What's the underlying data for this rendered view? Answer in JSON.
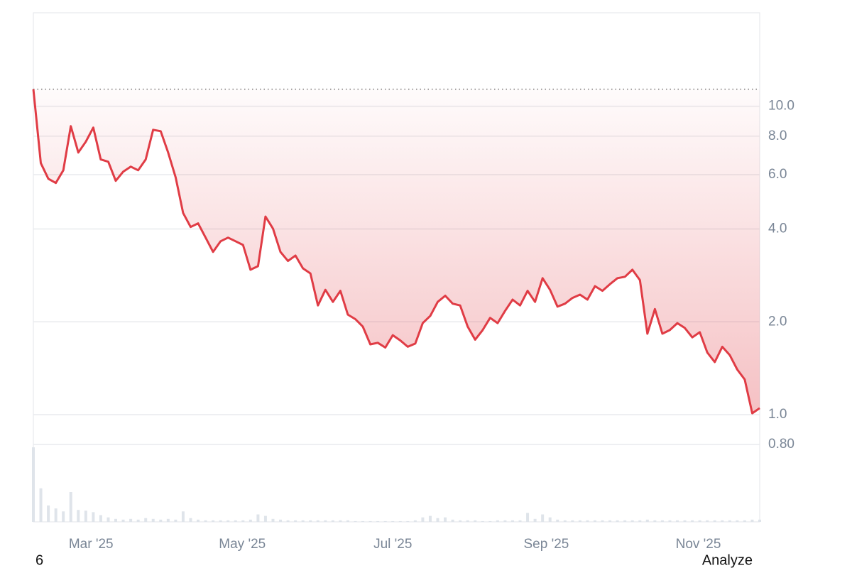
{
  "chart_data": {
    "type": "line",
    "values": [
      11.36,
      6.54,
      5.82,
      5.64,
      6.2,
      8.62,
      7.08,
      7.67,
      8.53,
      6.72,
      6.61,
      5.73,
      6.14,
      6.37,
      6.2,
      6.72,
      8.39,
      8.3,
      7.08,
      5.88,
      4.51,
      4.06,
      4.17,
      3.75,
      3.37,
      3.65,
      3.75,
      3.65,
      3.55,
      2.95,
      3.03,
      4.39,
      4.01,
      3.37,
      3.15,
      3.28,
      2.98,
      2.87,
      2.26,
      2.54,
      2.32,
      2.52,
      2.11,
      2.04,
      1.93,
      1.69,
      1.71,
      1.65,
      1.81,
      1.74,
      1.66,
      1.7,
      1.98,
      2.09,
      2.32,
      2.43,
      2.29,
      2.26,
      1.93,
      1.75,
      1.88,
      2.06,
      1.98,
      2.17,
      2.36,
      2.26,
      2.52,
      2.32,
      2.77,
      2.54,
      2.24,
      2.29,
      2.39,
      2.45,
      2.36,
      2.61,
      2.52,
      2.65,
      2.77,
      2.8,
      2.95,
      2.73,
      1.83,
      2.2,
      1.83,
      1.88,
      1.98,
      1.91,
      1.78,
      1.85,
      1.59,
      1.48,
      1.66,
      1.56,
      1.4,
      1.3,
      1.01,
      1.05
    ],
    "color": "#e03c45",
    "volume": [
      100,
      45,
      22,
      18,
      14,
      40,
      16,
      15,
      13,
      9,
      6,
      4,
      3,
      4,
      3,
      5,
      4,
      3,
      4,
      3,
      14,
      5,
      3,
      2,
      2,
      2,
      2,
      2,
      2,
      3,
      10,
      8,
      4,
      3,
      2,
      2,
      2,
      2,
      2,
      2,
      2,
      2,
      2,
      1,
      1,
      1,
      1,
      1,
      1,
      1,
      1,
      2,
      6,
      8,
      5,
      6,
      3,
      2,
      2,
      2,
      1,
      1,
      2,
      2,
      2,
      2,
      12,
      4,
      10,
      6,
      3,
      2,
      2,
      2,
      2,
      2,
      2,
      2,
      2,
      2,
      2,
      2,
      3,
      2,
      2,
      2,
      2,
      2,
      2,
      2,
      2,
      2,
      2,
      2,
      2,
      2,
      3,
      3
    ],
    "volume_color": "#dfe4ea",
    "reference_line": 11.36,
    "log_scale": true,
    "ylim": [
      0.449,
      20.1
    ],
    "yticks": [
      {
        "value": 0.8,
        "label": "0.80"
      },
      {
        "value": 1,
        "label": "1.0"
      },
      {
        "value": 2,
        "label": "2.0"
      },
      {
        "value": 4,
        "label": "4.0"
      },
      {
        "value": 6,
        "label": "6.0"
      },
      {
        "value": 8,
        "label": "8.0"
      },
      {
        "value": 10,
        "label": "10.0"
      }
    ],
    "xlim": [
      0,
      97
    ],
    "xticks": [
      {
        "value": 7.7,
        "label": "Mar '25"
      },
      {
        "value": 27.9,
        "label": "May '25"
      },
      {
        "value": 48.0,
        "label": "Jul '25"
      },
      {
        "value": 68.5,
        "label": "Sep '25"
      },
      {
        "value": 88.8,
        "label": "Nov '25"
      }
    ],
    "grid": true
  },
  "footer": {
    "left": "6",
    "button": "Analyze"
  }
}
